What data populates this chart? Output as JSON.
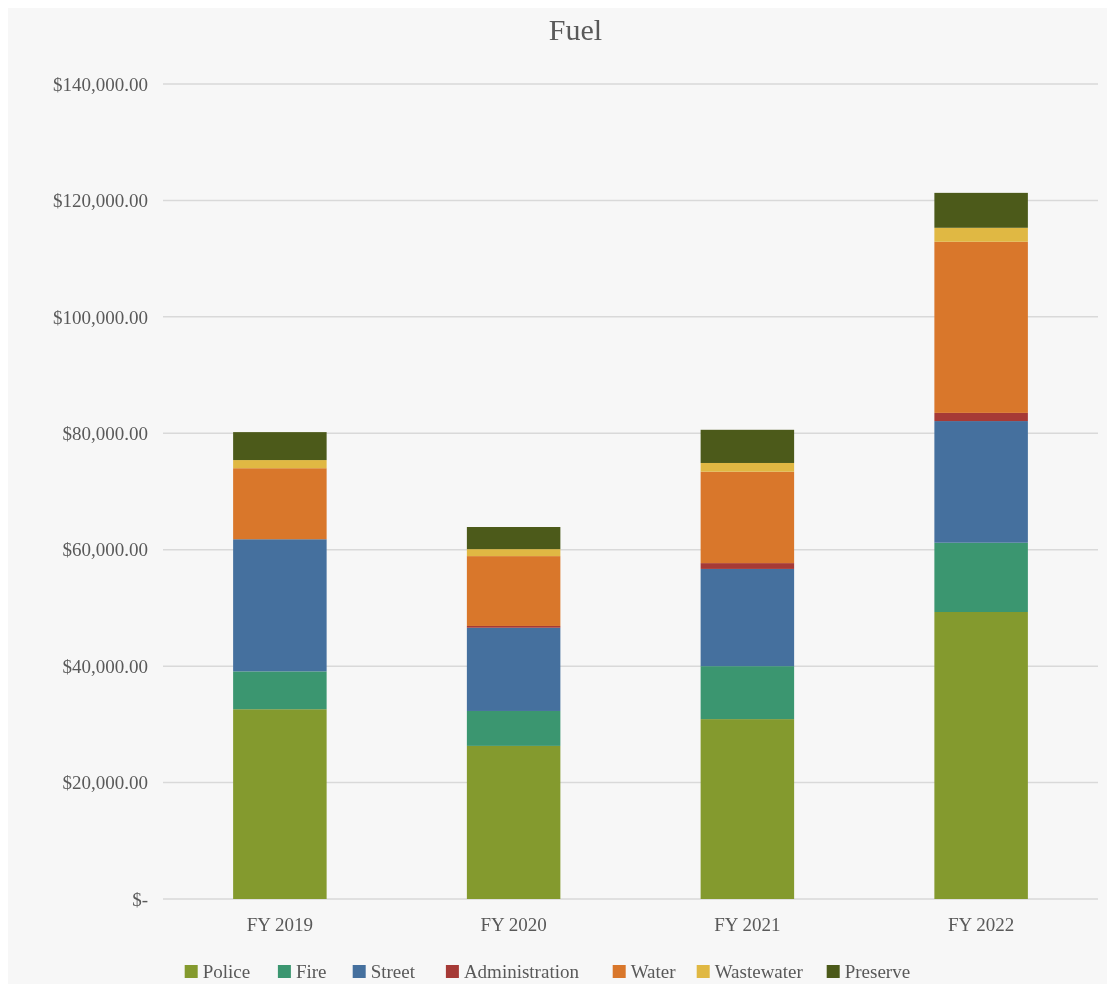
{
  "chart_data": {
    "type": "bar",
    "title": "Fuel",
    "stacked": true,
    "categories": [
      "FY 2019",
      "FY 2020",
      "FY 2021",
      "FY 2022"
    ],
    "series": [
      {
        "name": "Police",
        "color": "#849a2e",
        "values": [
          32600,
          26300,
          30900,
          49300
        ]
      },
      {
        "name": "Fire",
        "color": "#3b9670",
        "values": [
          6500,
          6000,
          9100,
          11900
        ]
      },
      {
        "name": "Street",
        "color": "#45709e",
        "values": [
          22700,
          14300,
          16700,
          20900
        ]
      },
      {
        "name": "Administration",
        "color": "#a63a36",
        "values": [
          0,
          300,
          1000,
          1400
        ]
      },
      {
        "name": "Water",
        "color": "#d9772b",
        "values": [
          12200,
          12000,
          15700,
          29400
        ]
      },
      {
        "name": "Wastewater",
        "color": "#e0b843",
        "values": [
          1400,
          1200,
          1500,
          2400
        ]
      },
      {
        "name": "Preserve",
        "color": "#4c5a1a",
        "values": [
          4800,
          3800,
          5700,
          6000
        ]
      }
    ],
    "ylim": [
      0,
      140000
    ],
    "yticks": [
      {
        "value": 0,
        "label": "$-"
      },
      {
        "value": 20000,
        "label": "$20,000.00"
      },
      {
        "value": 40000,
        "label": "$40,000.00"
      },
      {
        "value": 60000,
        "label": "$60,000.00"
      },
      {
        "value": 80000,
        "label": "$80,000.00"
      },
      {
        "value": 100000,
        "label": "$100,000.00"
      },
      {
        "value": 120000,
        "label": "$120,000.00"
      },
      {
        "value": 140000,
        "label": "$140,000.00"
      }
    ],
    "grid": "y",
    "legend": "bottom"
  }
}
